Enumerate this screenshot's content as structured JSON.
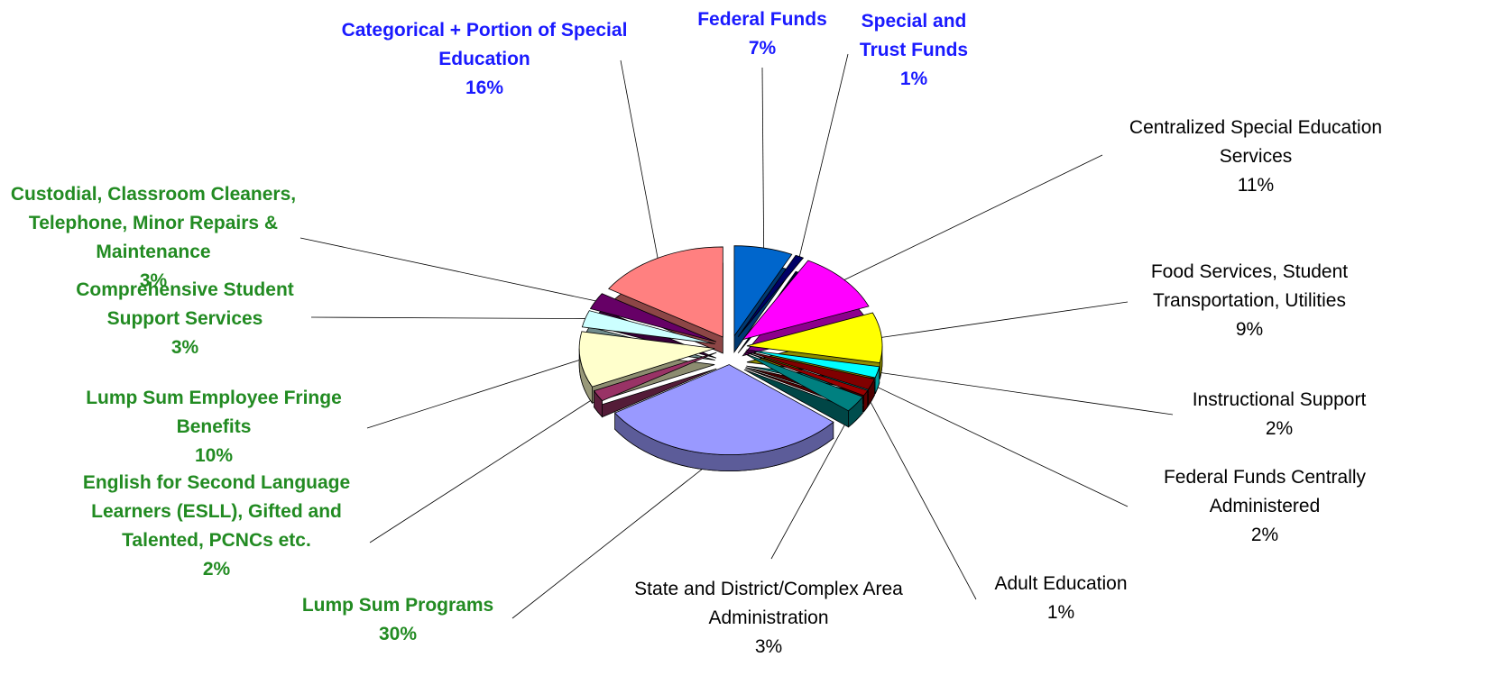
{
  "chart_data": {
    "type": "pie",
    "categories": [
      "Federal Funds",
      "Special and Trust Funds",
      "Centralized Special Education Services",
      "Food Services, Student Transportation, Utilities",
      "Instructional Support",
      "Federal Funds Centrally Administered",
      "Adult Education",
      "State and District/Complex Area Administration",
      "Lump Sum Programs",
      "English for Second Language Learners (ESLL), Gifted and Talented, PCNCs etc.",
      "Lump Sum Employee Fringe Benefits",
      "Comprehensive Student Support Services",
      "Custodial, Classroom Cleaners, Telephone, Minor Repairs & Maintenance",
      "Categorical +  Portion of Special Education"
    ],
    "values": [
      7,
      1,
      11,
      9,
      2,
      2,
      1,
      3,
      30,
      2,
      10,
      3,
      3,
      16
    ],
    "value_labels": [
      "7%",
      "1%",
      "11%",
      "9%",
      "2%",
      "2%",
      "1%",
      "3%",
      "30%",
      "2%",
      "10%",
      "3%",
      "3%",
      "16%"
    ],
    "colors": [
      "#0066cc",
      "#000066",
      "#ff00ff",
      "#ffff00",
      "#00ffff",
      "#800000",
      "#990000",
      "#008080",
      "#9999ff",
      "#993366",
      "#ffffcc",
      "#ccffff",
      "#660066",
      "#ff8080"
    ],
    "label_colors": [
      "#1a1aff",
      "#1a1aff",
      "#000000",
      "#000000",
      "#000000",
      "#000000",
      "#000000",
      "#000000",
      "#228b22",
      "#228b22",
      "#228b22",
      "#228b22",
      "#228b22",
      "#1a1aff"
    ]
  }
}
